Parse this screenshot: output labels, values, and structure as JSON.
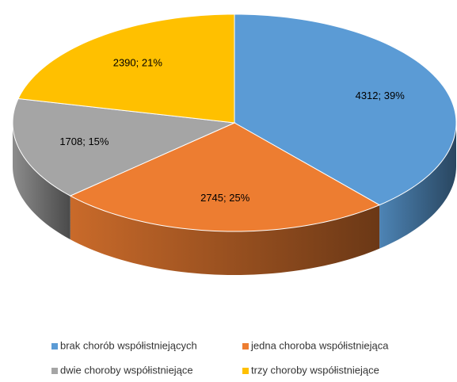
{
  "chart_data": {
    "type": "pie3d",
    "categories": [
      "brak chorób współistniejących",
      "jedna choroba współistniejąca",
      "dwie choroby współistniejące",
      "trzy choroby współistniejące"
    ],
    "values": [
      4312,
      2745,
      1708,
      2390
    ],
    "value_labels": [
      "4312; 39%",
      "2745; 25%",
      "1708; 15%",
      "2390; 21%"
    ],
    "colors": [
      "#5b9bd5",
      "#ed7d31",
      "#a5a5a5",
      "#ffc000"
    ],
    "legend": "bottom"
  }
}
